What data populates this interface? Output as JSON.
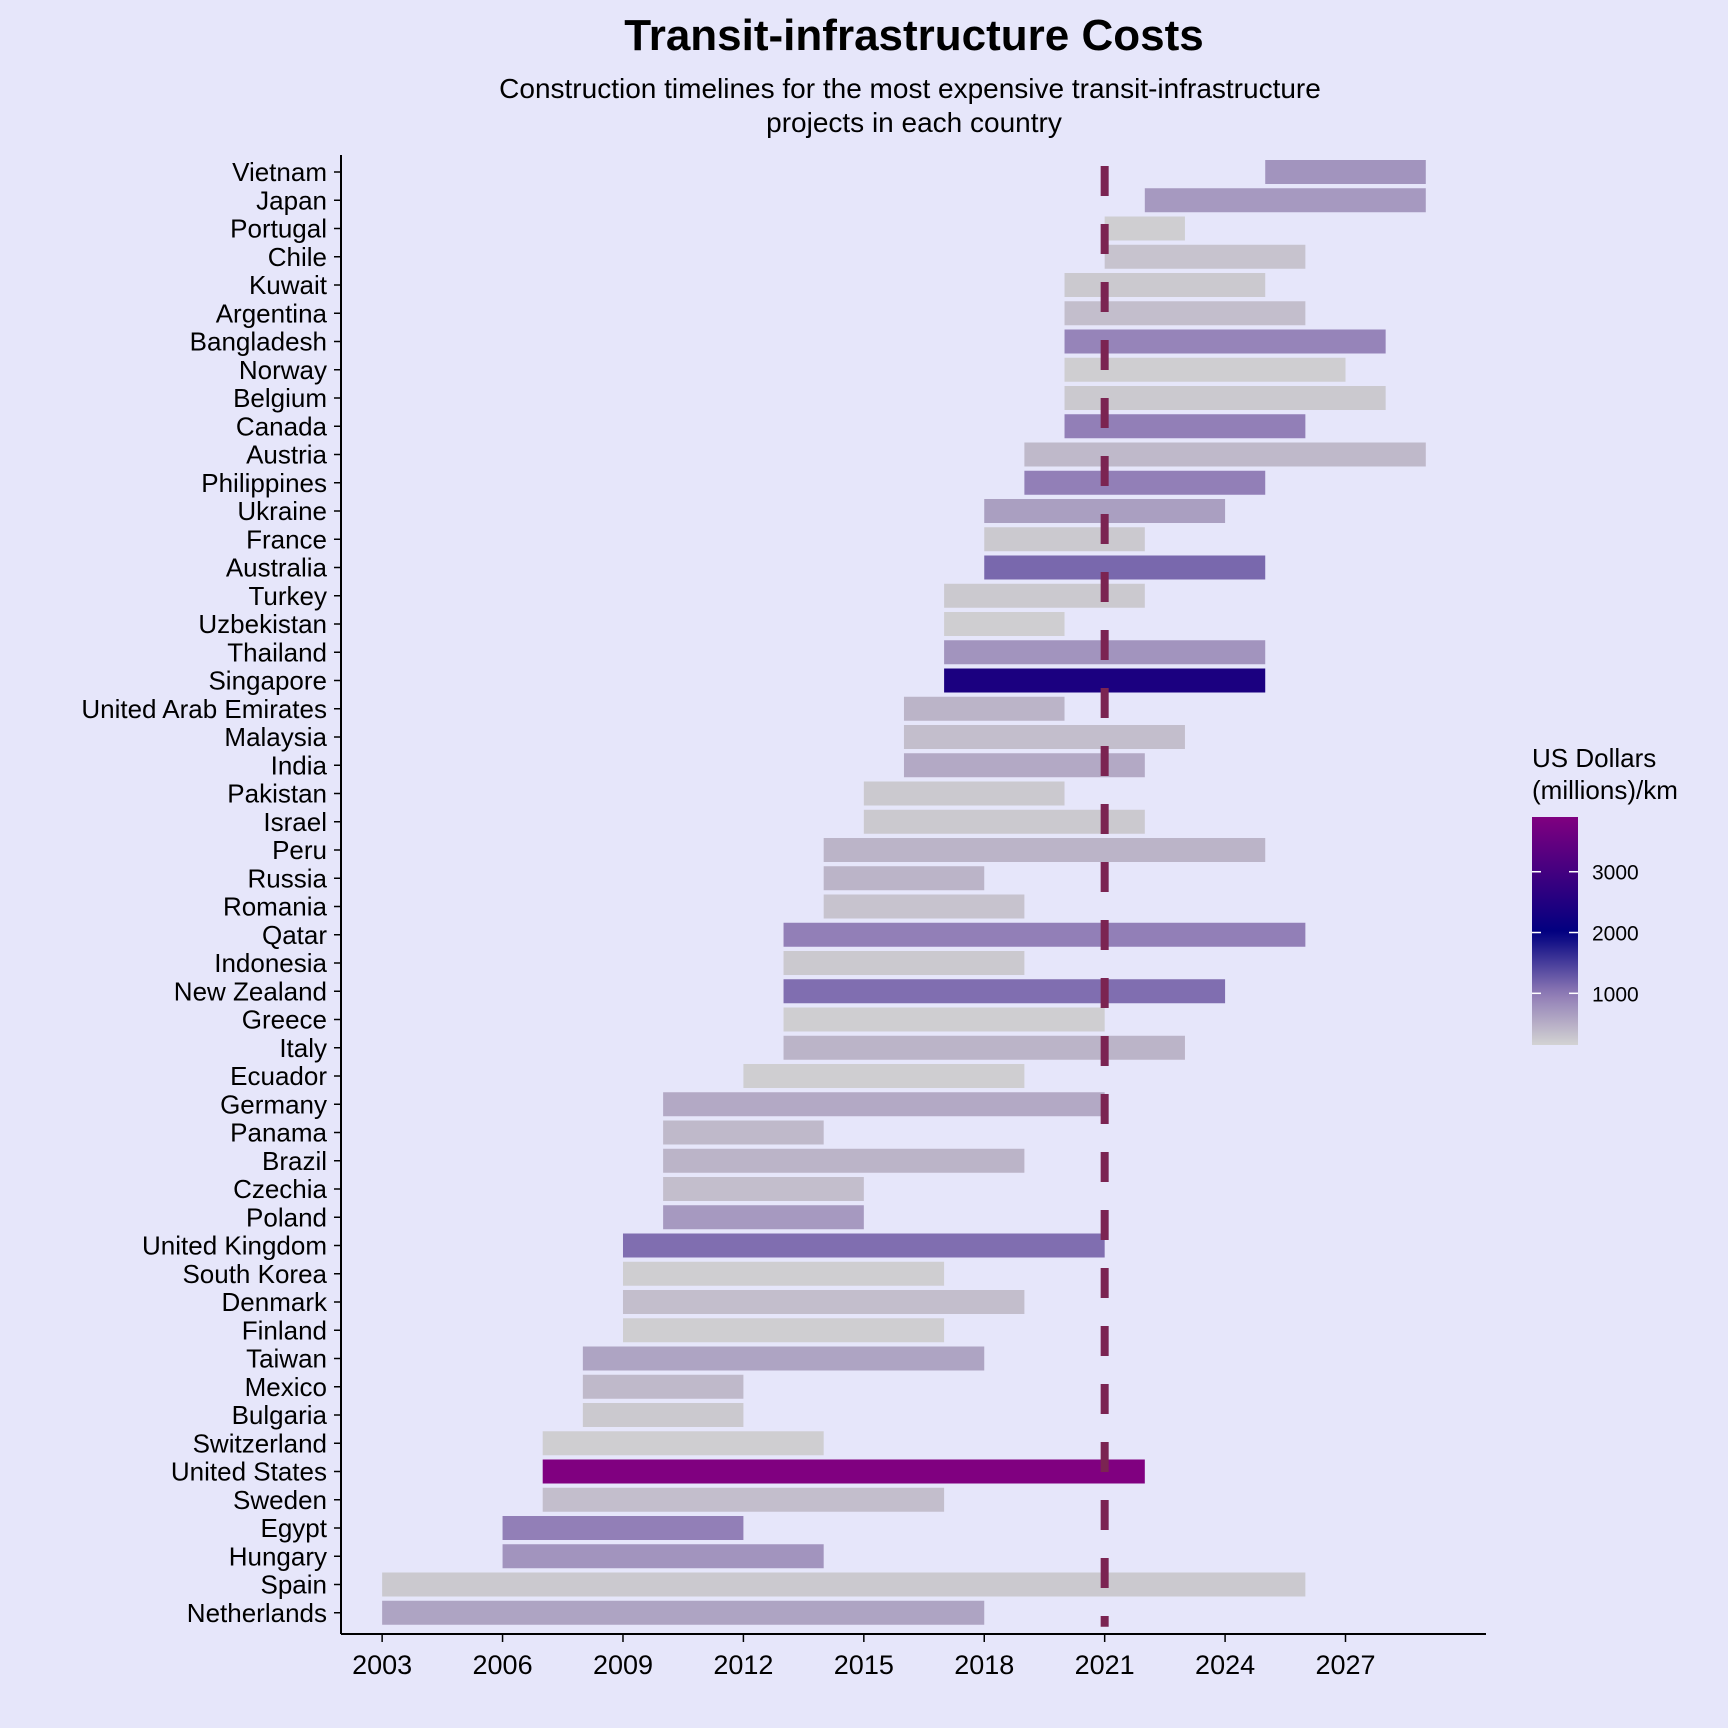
{
  "chart_data": {
    "type": "bar",
    "orientation": "horizontal-range",
    "title": "Transit-infrastructure Costs",
    "subtitle_lines": [
      "Construction timelines for the most expensive transit-infrastructure",
      "projects in each country"
    ],
    "xlabel": "",
    "ylabel": "",
    "xlim": [
      2002,
      2030.5
    ],
    "x_ticks": [
      2003,
      2006,
      2009,
      2012,
      2015,
      2018,
      2021,
      2024,
      2027
    ],
    "reference_line": {
      "x": 2021,
      "style": "dashed",
      "color": "#7b2452"
    },
    "legend": {
      "title_lines": [
        "US Dollars",
        "(millions)/km"
      ],
      "placement": "right",
      "ticks": [
        1000,
        2000,
        3000
      ],
      "range": [
        150,
        3900
      ],
      "colors": [
        "#d3d3d3",
        "#8e7ab5",
        "#000080",
        "#800080"
      ]
    },
    "series": [
      {
        "category": "Vietnam",
        "start": 2025,
        "end": 2029,
        "cost": 750
      },
      {
        "category": "Japan",
        "start": 2022,
        "end": 2029,
        "cost": 700
      },
      {
        "category": "Portugal",
        "start": 2021,
        "end": 2023,
        "cost": 200
      },
      {
        "category": "Chile",
        "start": 2021,
        "end": 2026,
        "cost": 300
      },
      {
        "category": "Kuwait",
        "start": 2020,
        "end": 2025,
        "cost": 250
      },
      {
        "category": "Argentina",
        "start": 2020,
        "end": 2026,
        "cost": 350
      },
      {
        "category": "Bangladesh",
        "start": 2020,
        "end": 2028,
        "cost": 900
      },
      {
        "category": "Norway",
        "start": 2020,
        "end": 2027,
        "cost": 200
      },
      {
        "category": "Belgium",
        "start": 2020,
        "end": 2028,
        "cost": 250
      },
      {
        "category": "Canada",
        "start": 2020,
        "end": 2026,
        "cost": 950
      },
      {
        "category": "Austria",
        "start": 2019,
        "end": 2029,
        "cost": 400
      },
      {
        "category": "Philippines",
        "start": 2019,
        "end": 2025,
        "cost": 950
      },
      {
        "category": "Ukraine",
        "start": 2018,
        "end": 2024,
        "cost": 650
      },
      {
        "category": "France",
        "start": 2018,
        "end": 2022,
        "cost": 250
      },
      {
        "category": "Australia",
        "start": 2018,
        "end": 2025,
        "cost": 1150
      },
      {
        "category": "Turkey",
        "start": 2017,
        "end": 2022,
        "cost": 250
      },
      {
        "category": "Uzbekistan",
        "start": 2017,
        "end": 2020,
        "cost": 200
      },
      {
        "category": "Thailand",
        "start": 2017,
        "end": 2025,
        "cost": 750
      },
      {
        "category": "Singapore",
        "start": 2017,
        "end": 2025,
        "cost": 2400
      },
      {
        "category": "United Arab Emirates",
        "start": 2016,
        "end": 2020,
        "cost": 450
      },
      {
        "category": "Malaysia",
        "start": 2016,
        "end": 2023,
        "cost": 350
      },
      {
        "category": "India",
        "start": 2016,
        "end": 2022,
        "cost": 550
      },
      {
        "category": "Pakistan",
        "start": 2015,
        "end": 2020,
        "cost": 250
      },
      {
        "category": "Israel",
        "start": 2015,
        "end": 2022,
        "cost": 250
      },
      {
        "category": "Peru",
        "start": 2014,
        "end": 2025,
        "cost": 450
      },
      {
        "category": "Russia",
        "start": 2014,
        "end": 2018,
        "cost": 450
      },
      {
        "category": "Romania",
        "start": 2014,
        "end": 2019,
        "cost": 300
      },
      {
        "category": "Qatar",
        "start": 2013,
        "end": 2026,
        "cost": 950
      },
      {
        "category": "Indonesia",
        "start": 2013,
        "end": 2019,
        "cost": 250
      },
      {
        "category": "New Zealand",
        "start": 2013,
        "end": 2024,
        "cost": 1100
      },
      {
        "category": "Greece",
        "start": 2013,
        "end": 2021,
        "cost": 200
      },
      {
        "category": "Italy",
        "start": 2013,
        "end": 2023,
        "cost": 450
      },
      {
        "category": "Ecuador",
        "start": 2012,
        "end": 2019,
        "cost": 200
      },
      {
        "category": "Germany",
        "start": 2010,
        "end": 2021,
        "cost": 550
      },
      {
        "category": "Panama",
        "start": 2010,
        "end": 2014,
        "cost": 400
      },
      {
        "category": "Brazil",
        "start": 2010,
        "end": 2019,
        "cost": 450
      },
      {
        "category": "Czechia",
        "start": 2010,
        "end": 2015,
        "cost": 350
      },
      {
        "category": "Poland",
        "start": 2010,
        "end": 2015,
        "cost": 700
      },
      {
        "category": "United Kingdom",
        "start": 2009,
        "end": 2021,
        "cost": 1100
      },
      {
        "category": "South Korea",
        "start": 2009,
        "end": 2017,
        "cost": 200
      },
      {
        "category": "Denmark",
        "start": 2009,
        "end": 2019,
        "cost": 350
      },
      {
        "category": "Finland",
        "start": 2009,
        "end": 2017,
        "cost": 200
      },
      {
        "category": "Taiwan",
        "start": 2008,
        "end": 2018,
        "cost": 600
      },
      {
        "category": "Mexico",
        "start": 2008,
        "end": 2012,
        "cost": 400
      },
      {
        "category": "Bulgaria",
        "start": 2008,
        "end": 2012,
        "cost": 250
      },
      {
        "category": "Switzerland",
        "start": 2007,
        "end": 2014,
        "cost": 200
      },
      {
        "category": "United States",
        "start": 2007,
        "end": 2022,
        "cost": 3900
      },
      {
        "category": "Sweden",
        "start": 2007,
        "end": 2017,
        "cost": 350
      },
      {
        "category": "Egypt",
        "start": 2006,
        "end": 2012,
        "cost": 950
      },
      {
        "category": "Hungary",
        "start": 2006,
        "end": 2014,
        "cost": 750
      },
      {
        "category": "Spain",
        "start": 2003,
        "end": 2026,
        "cost": 250
      },
      {
        "category": "Netherlands",
        "start": 2003,
        "end": 2018,
        "cost": 600
      }
    ]
  }
}
